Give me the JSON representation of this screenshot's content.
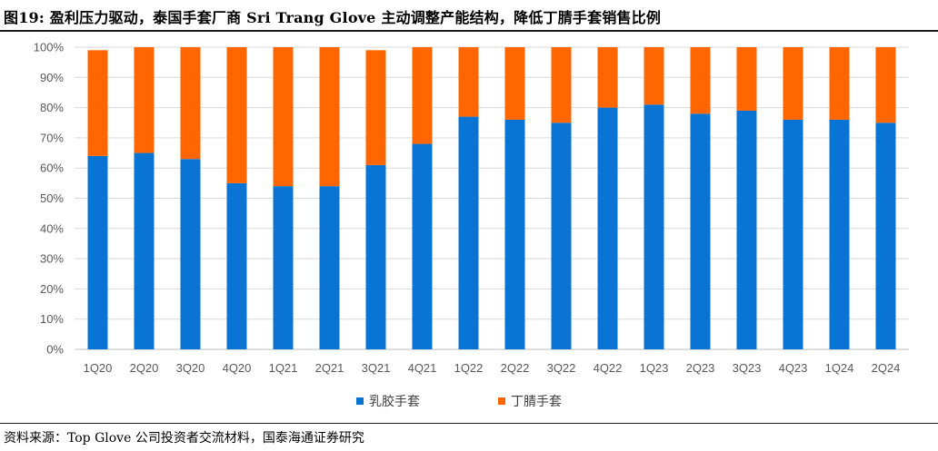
{
  "title": "图19:  盈利压力驱动，泰国手套厂商 Sri Trang Glove 主动调整产能结构，降低丁腈手套销售比例",
  "source": "资料来源：Top Glove 公司投资者交流材料，国泰海通证券研究",
  "colors": {
    "latex": "#0a74d4",
    "nitrile": "#ff6600",
    "grid": "#d9d9d9",
    "axis": "#bfbfbf"
  },
  "chart_data": {
    "type": "bar",
    "stacked": true,
    "categories": [
      "1Q20",
      "2Q20",
      "3Q20",
      "4Q20",
      "1Q21",
      "2Q21",
      "3Q21",
      "4Q21",
      "1Q22",
      "2Q22",
      "3Q22",
      "4Q22",
      "1Q23",
      "2Q23",
      "3Q23",
      "4Q23",
      "1Q24",
      "2Q24"
    ],
    "series": [
      {
        "name": "乳胶手套",
        "values": [
          64,
          65,
          63,
          55,
          54,
          54,
          61,
          68,
          77,
          76,
          75,
          80,
          81,
          78,
          79,
          76,
          76,
          75
        ]
      },
      {
        "name": "丁腈手套",
        "values": [
          35,
          35,
          37,
          45,
          46,
          46,
          38,
          32,
          23,
          24,
          25,
          20,
          19,
          22,
          21,
          24,
          24,
          25
        ]
      }
    ],
    "ylim": [
      0,
      100
    ],
    "yticks": [
      "0%",
      "10%",
      "20%",
      "30%",
      "40%",
      "50%",
      "60%",
      "70%",
      "80%",
      "90%",
      "100%"
    ],
    "grid": true,
    "legend_position": "bottom"
  }
}
